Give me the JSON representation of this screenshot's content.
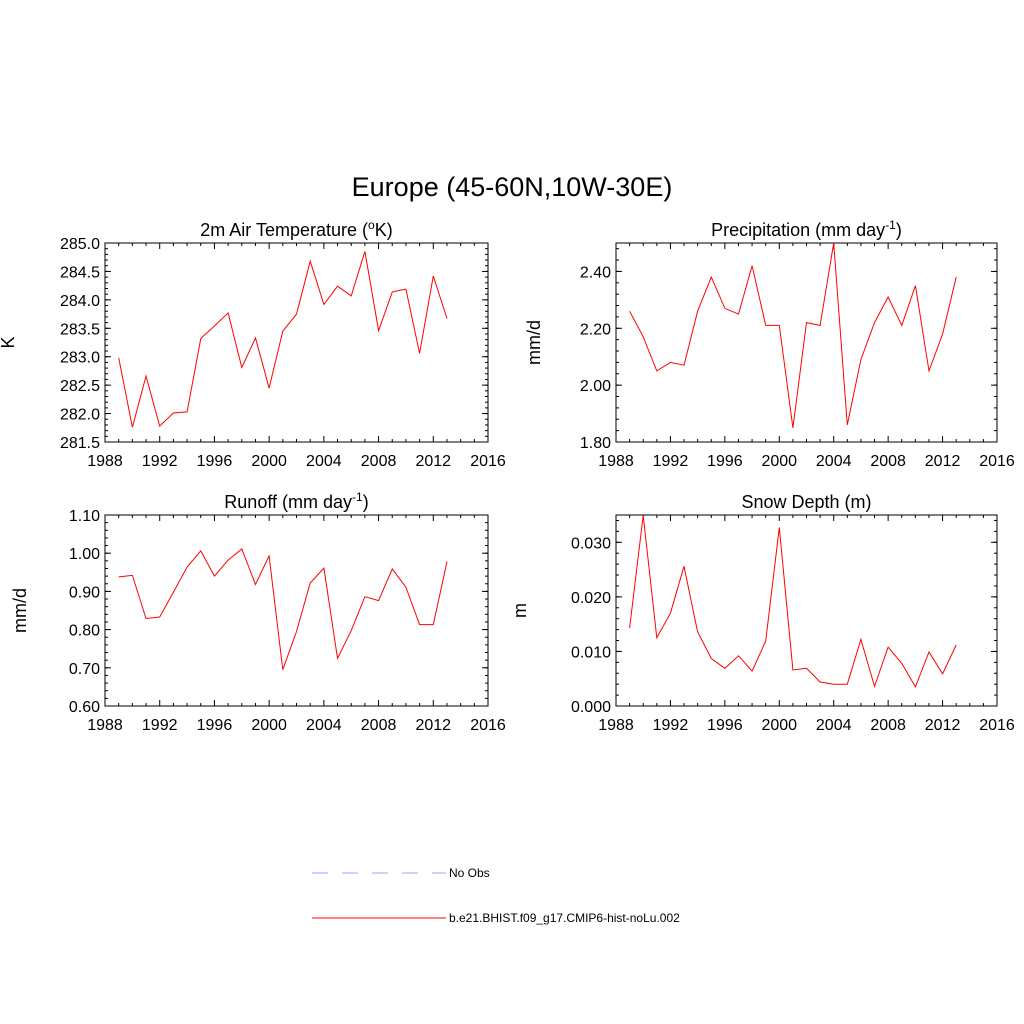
{
  "figure": {
    "title": "Europe (45-60N,10W-30E)"
  },
  "chart_data": [
    {
      "type": "line",
      "title": "2m Air Temperature (",
      "title_sup": "o",
      "title_after_sup": "K)",
      "ylabel": "K",
      "xlim": [
        1988,
        2016
      ],
      "ylim": [
        281.5,
        285.0
      ],
      "xticks": [
        1988,
        1992,
        1996,
        2000,
        2004,
        2008,
        2012,
        2016
      ],
      "yticks": [
        281.5,
        282.0,
        282.5,
        283.0,
        283.5,
        284.0,
        284.5,
        285.0
      ],
      "ytick_labels": [
        "281.5",
        "282.0",
        "282.5",
        "283.0",
        "283.5",
        "284.0",
        "284.5",
        "285.0"
      ],
      "x": [
        1989,
        1990,
        1991,
        1992,
        1993,
        1994,
        1995,
        1996,
        1997,
        1998,
        1999,
        2000,
        2001,
        2002,
        2003,
        2004,
        2005,
        2006,
        2007,
        2008,
        2009,
        2010,
        2011,
        2012,
        2013
      ],
      "series": [
        {
          "name": "b.e21.BHIST.f09_g17.CMIP6-hist-noLu.002",
          "color": "#ff0000",
          "values": [
            282.98,
            281.76,
            282.66,
            281.78,
            282.01,
            282.03,
            283.32,
            283.54,
            283.77,
            282.81,
            283.33,
            282.45,
            283.45,
            283.75,
            284.68,
            283.92,
            284.24,
            284.07,
            284.85,
            283.46,
            284.14,
            284.19,
            283.06,
            284.42,
            283.67
          ]
        }
      ]
    },
    {
      "type": "line",
      "title": "Precipitation (mm day",
      "title_sup": "-1",
      "title_after_sup": ")",
      "ylabel": "mm/d",
      "xlim": [
        1988,
        2016
      ],
      "ylim": [
        1.8,
        2.5
      ],
      "xticks": [
        1988,
        1992,
        1996,
        2000,
        2004,
        2008,
        2012,
        2016
      ],
      "yticks": [
        1.8,
        2.0,
        2.2,
        2.4
      ],
      "ytick_labels": [
        "1.80",
        "2.00",
        "2.20",
        "2.40"
      ],
      "x": [
        1989,
        1990,
        1991,
        1992,
        1993,
        1994,
        1995,
        1996,
        1997,
        1998,
        1999,
        2000,
        2001,
        2002,
        2003,
        2004,
        2005,
        2006,
        2007,
        2008,
        2009,
        2010,
        2011,
        2012,
        2013
      ],
      "series": [
        {
          "name": "b.e21.BHIST.f09_g17.CMIP6-hist-noLu.002",
          "color": "#ff0000",
          "values": [
            2.26,
            2.17,
            2.05,
            2.08,
            2.07,
            2.26,
            2.38,
            2.27,
            2.25,
            2.42,
            2.21,
            2.21,
            1.85,
            2.22,
            2.21,
            2.5,
            1.86,
            2.09,
            2.22,
            2.31,
            2.21,
            2.35,
            2.05,
            2.18,
            2.38
          ]
        }
      ]
    },
    {
      "type": "line",
      "title": "Runoff (mm day",
      "title_sup": "-1",
      "title_after_sup": ")",
      "ylabel": "mm/d",
      "xlim": [
        1988,
        2016
      ],
      "ylim": [
        0.6,
        1.1
      ],
      "xticks": [
        1988,
        1992,
        1996,
        2000,
        2004,
        2008,
        2012,
        2016
      ],
      "yticks": [
        0.6,
        0.7,
        0.8,
        0.9,
        1.0,
        1.1
      ],
      "ytick_labels": [
        "0.60",
        "0.70",
        "0.80",
        "0.90",
        "1.00",
        "1.10"
      ],
      "x": [
        1989,
        1990,
        1991,
        1992,
        1993,
        1994,
        1995,
        1996,
        1997,
        1998,
        1999,
        2000,
        2001,
        2002,
        2003,
        2004,
        2005,
        2006,
        2007,
        2008,
        2009,
        2010,
        2011,
        2012,
        2013
      ],
      "series": [
        {
          "name": "b.e21.BHIST.f09_g17.CMIP6-hist-noLu.002",
          "color": "#ff0000",
          "values": [
            0.938,
            0.942,
            0.829,
            0.833,
            0.898,
            0.964,
            1.006,
            0.94,
            0.982,
            1.011,
            0.918,
            0.993,
            0.695,
            0.795,
            0.922,
            0.961,
            0.725,
            0.797,
            0.886,
            0.876,
            0.959,
            0.911,
            0.813,
            0.813,
            0.978
          ]
        }
      ]
    },
    {
      "type": "line",
      "title": "Snow Depth (m)",
      "title_sup": "",
      "title_after_sup": "",
      "ylabel": "m",
      "xlim": [
        1988,
        2016
      ],
      "ylim": [
        0.0,
        0.035
      ],
      "xticks": [
        1988,
        1992,
        1996,
        2000,
        2004,
        2008,
        2012,
        2016
      ],
      "yticks": [
        0.0,
        0.01,
        0.02,
        0.03
      ],
      "ytick_labels": [
        "0.000",
        "0.010",
        "0.020",
        "0.030"
      ],
      "x": [
        1989,
        1990,
        1991,
        1992,
        1993,
        1994,
        1995,
        1996,
        1997,
        1998,
        1999,
        2000,
        2001,
        2002,
        2003,
        2004,
        2005,
        2006,
        2007,
        2008,
        2009,
        2010,
        2011,
        2012,
        2013
      ],
      "series": [
        {
          "name": "b.e21.BHIST.f09_g17.CMIP6-hist-noLu.002",
          "color": "#ff0000",
          "values": [
            0.0143,
            0.0349,
            0.0125,
            0.017,
            0.0256,
            0.0136,
            0.0087,
            0.0069,
            0.0092,
            0.0064,
            0.0119,
            0.0327,
            0.0066,
            0.0069,
            0.0044,
            0.004,
            0.004,
            0.0122,
            0.0036,
            0.0108,
            0.0078,
            0.0035,
            0.0099,
            0.0059,
            0.0112
          ]
        }
      ]
    }
  ],
  "legend": {
    "entries": [
      {
        "label": "No Obs",
        "color": "#a0a0ff",
        "style": "dashed"
      },
      {
        "label": "b.e21.BHIST.f09_g17.CMIP6-hist-noLu.002",
        "color": "#ff0000",
        "style": "solid"
      }
    ]
  }
}
